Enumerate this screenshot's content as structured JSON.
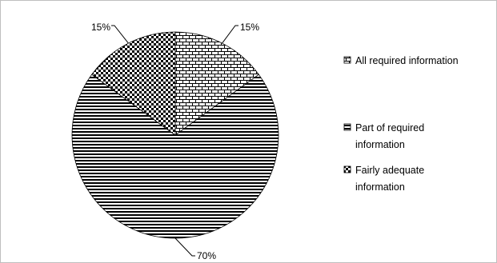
{
  "chart_data": {
    "type": "pie",
    "title": "",
    "series": [
      {
        "values": [
          15,
          70,
          15
        ],
        "labels": [
          "All required information",
          "Part of required information",
          "Fairly adequate information"
        ],
        "patterns": [
          "brick",
          "horizontal",
          "checker"
        ]
      }
    ],
    "data_labels": [
      "15%",
      "70%",
      "15%"
    ],
    "legend": {
      "placement": "right",
      "entries": [
        {
          "lines": [
            "All required information"
          ]
        },
        {
          "lines": [
            "Part of required",
            "information"
          ]
        },
        {
          "lines": [
            "Fairly adequate",
            "information"
          ]
        }
      ]
    },
    "start_angle_deg": 0,
    "direction": "clockwise"
  },
  "colors": {
    "ink": "#000000",
    "background": "#ffffff",
    "frame": "#bfbfbf"
  }
}
